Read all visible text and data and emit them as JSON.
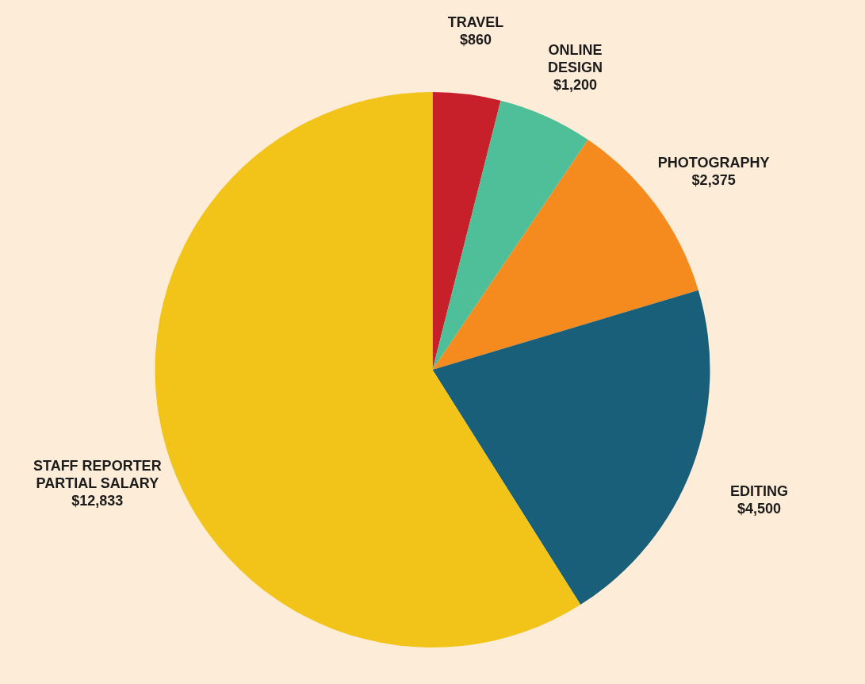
{
  "chart_data": {
    "type": "pie",
    "categories": [
      "TRAVEL",
      "ONLINE DESIGN",
      "PHOTOGRAPHY",
      "EDITING",
      "STAFF REPORTER PARTIAL SALARY"
    ],
    "values": [
      860,
      1200,
      2375,
      4500,
      12833
    ],
    "value_labels": [
      "$860",
      "$1,200",
      "$2,375",
      "$4,500",
      "$12,833"
    ],
    "colors": [
      "#c8202a",
      "#4fbf9a",
      "#f58b1f",
      "#1a5f7a",
      "#f2c318"
    ]
  }
}
